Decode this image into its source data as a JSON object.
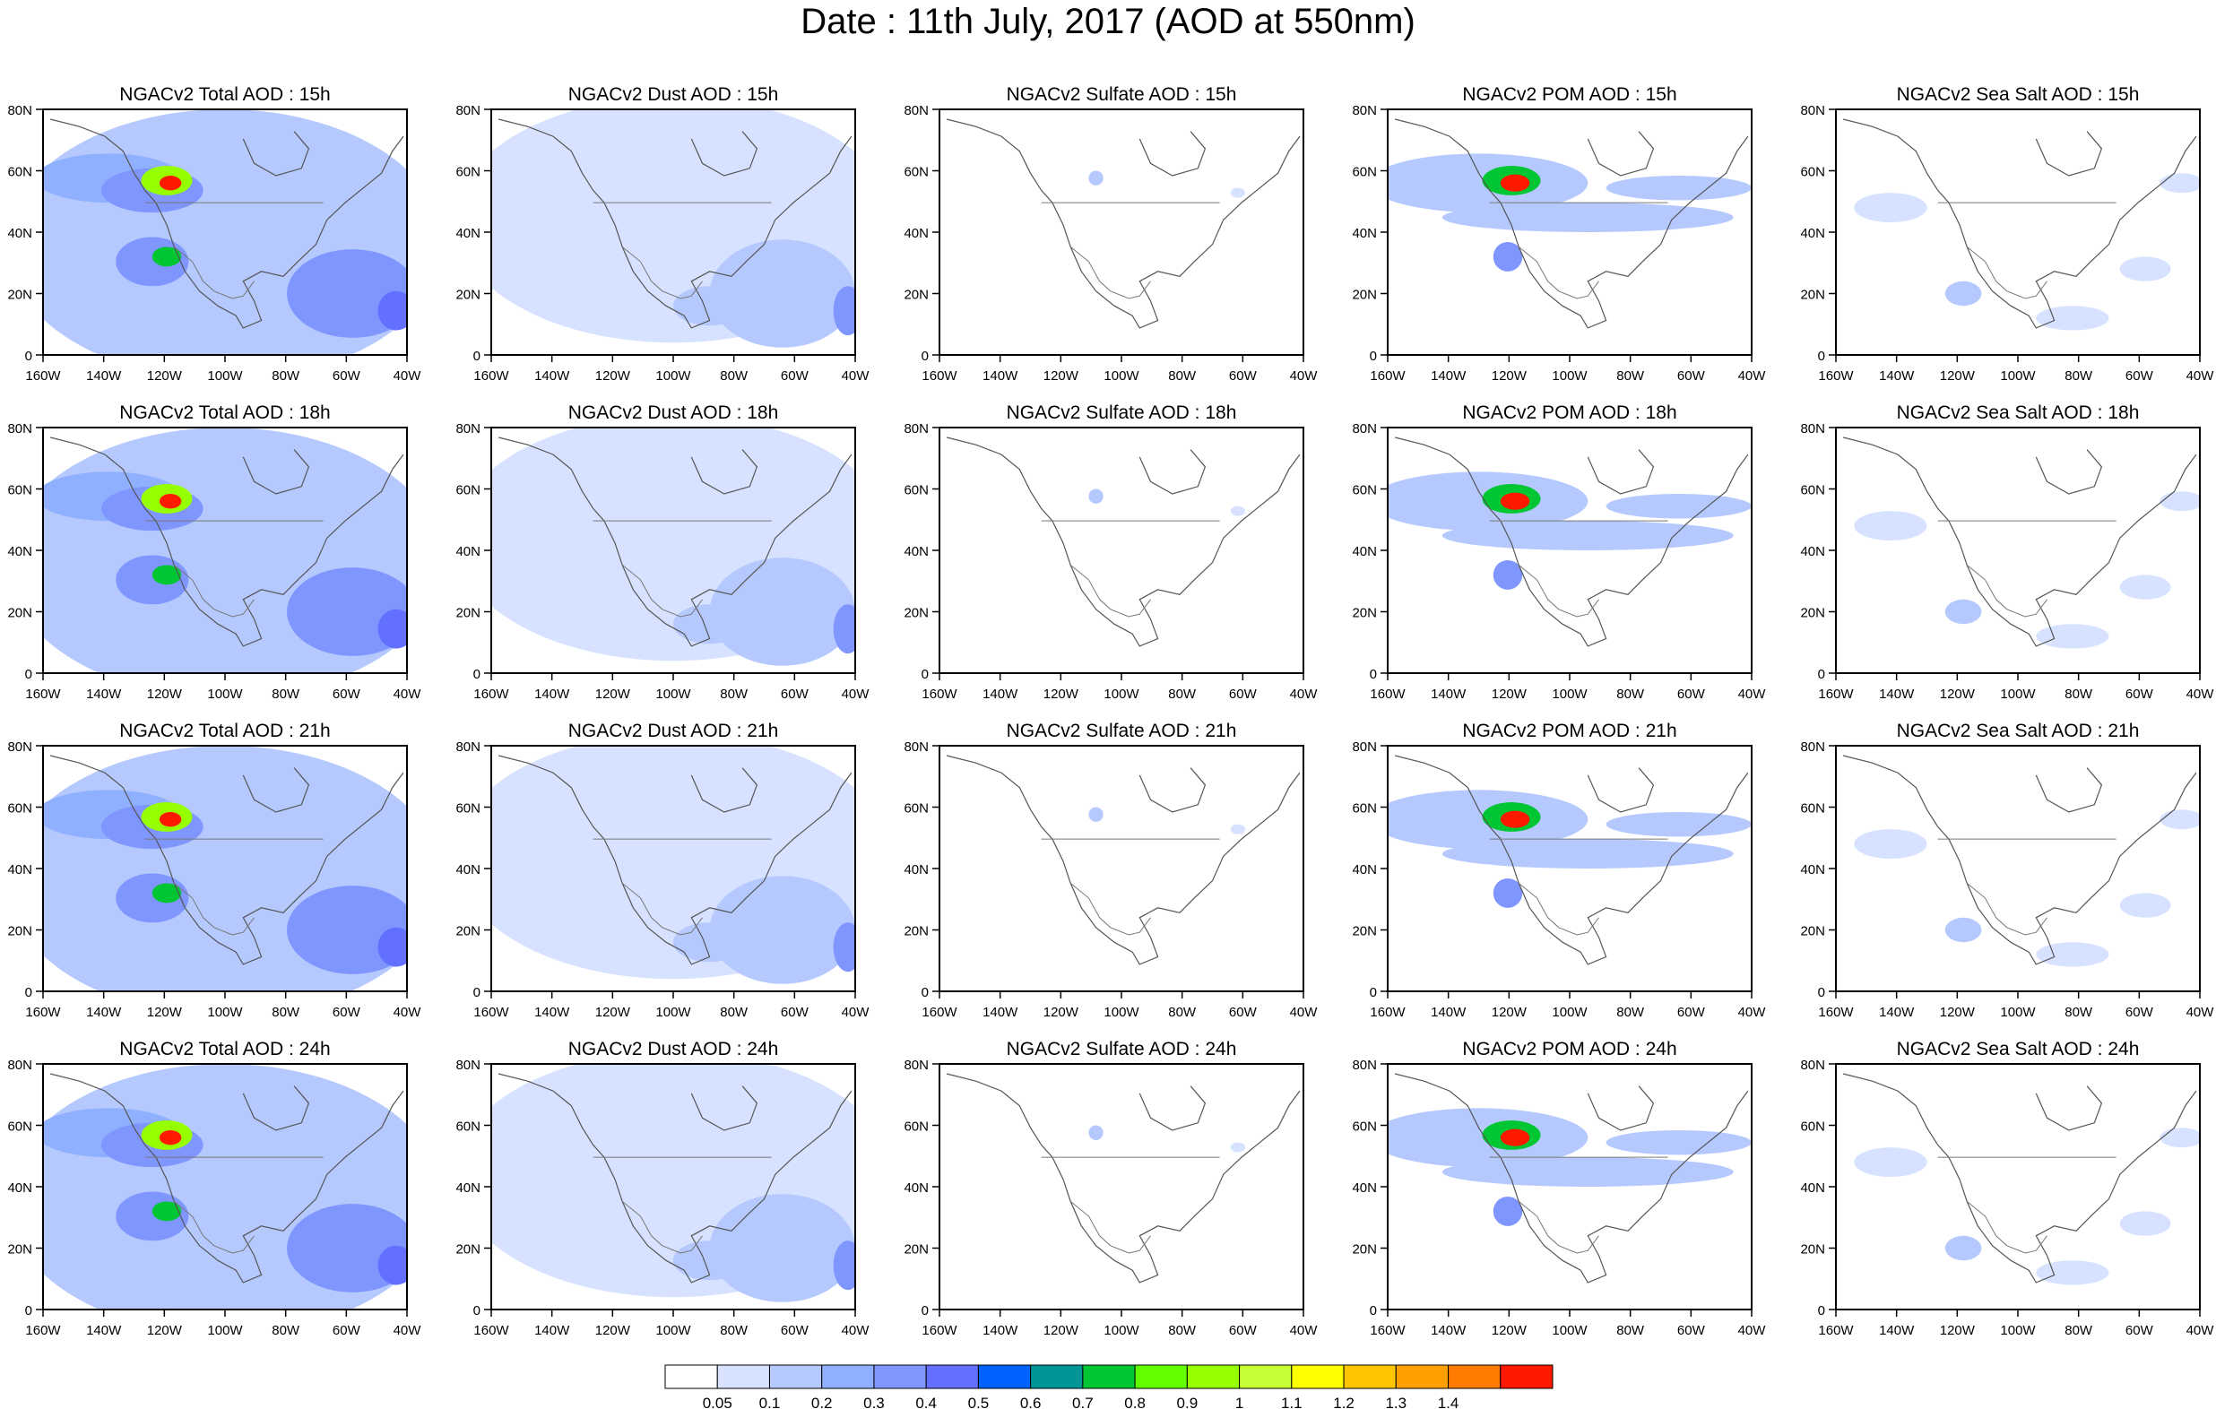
{
  "title": "Date : 11th July, 2017 (AOD at 550nm)",
  "lat_labels": [
    "0",
    "20N",
    "40N",
    "60N",
    "80N"
  ],
  "lon_labels": [
    "160W",
    "140W",
    "120W",
    "100W",
    "80W",
    "60W",
    "40W"
  ],
  "panels": [
    [
      "NGACv2 Total AOD : 15h",
      "NGACv2 Dust AOD : 15h",
      "NGACv2 Sulfate AOD : 15h",
      "NGACv2 POM AOD : 15h",
      "NGACv2 Sea Salt AOD : 15h"
    ],
    [
      "NGACv2 Total AOD : 18h",
      "NGACv2 Dust AOD : 18h",
      "NGACv2 Sulfate AOD : 18h",
      "NGACv2 POM AOD : 18h",
      "NGACv2 Sea Salt AOD : 18h"
    ],
    [
      "NGACv2 Total AOD : 21h",
      "NGACv2 Dust AOD : 21h",
      "NGACv2 Sulfate AOD : 21h",
      "NGACv2 POM AOD : 21h",
      "NGACv2 Sea Salt AOD : 21h"
    ],
    [
      "NGACv2 Total AOD : 24h",
      "NGACv2 Dust AOD : 24h",
      "NGACv2 Sulfate AOD : 24h",
      "NGACv2 POM AOD : 24h",
      "NGACv2 Sea Salt  AOD : 24h"
    ]
  ],
  "colorbar": {
    "labels": [
      "0.05",
      "0.1",
      "0.2",
      "0.3",
      "0.4",
      "0.5",
      "0.6",
      "0.7",
      "0.8",
      "0.9",
      "1",
      "1.1",
      "1.2",
      "1.3",
      "1.4"
    ],
    "colors": [
      "#ffffff",
      "#d6e2ff",
      "#b5c9ff",
      "#8fb0ff",
      "#7f96ff",
      "#6370ff",
      "#0063ff",
      "#009696",
      "#00c633",
      "#63ff00",
      "#96ff00",
      "#c6ff33",
      "#ffff00",
      "#ffc600",
      "#ffa000",
      "#ff7c00",
      "#ff1900"
    ]
  }
}
